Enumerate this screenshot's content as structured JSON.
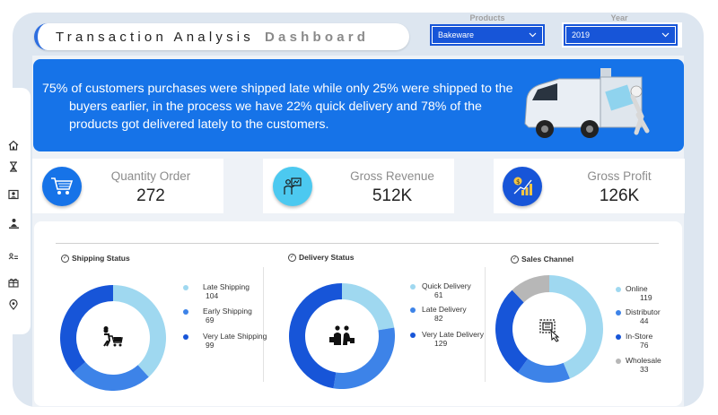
{
  "header": {
    "title_part1": "Transaction Analysis",
    "title_part2": "Dashboard"
  },
  "filters": {
    "products": {
      "label": "Products",
      "selected": "Bakeware"
    },
    "year": {
      "label": "Year",
      "selected": "2019"
    }
  },
  "banner": {
    "line1_a": "75%",
    "line1_b": "of customers purchases were shipped late while only",
    "line1_c": "25%",
    "line1_d": "were shipped to the",
    "line2_a": "buyers earlier, in the process we have",
    "line2_b": "22%",
    "line2_c": "quick delivery and",
    "line2_d": "78%",
    "line2_e": "of the",
    "line3": "products got delivered lately to the customers."
  },
  "kpis": [
    {
      "label": "Quantity Order",
      "value": "272",
      "icon": "shopping-cart-icon"
    },
    {
      "label": "Gross Revenue",
      "value": "512K",
      "icon": "revenue-presentation-icon"
    },
    {
      "label": "Gross Profit",
      "value": "126K",
      "icon": "profit-growth-icon"
    }
  ],
  "colors": {
    "accent": "#1673e8",
    "dark_blue": "#1755d8",
    "mid_blue": "#3d83e8",
    "light_blue": "#9fd8f0",
    "grey": "#b7b7b7"
  },
  "chart_data": [
    {
      "type": "pie",
      "title": "Shipping Status",
      "categories": [
        "Late Shipping",
        "Early Shipping",
        "Very Late Shipping"
      ],
      "values": [
        104,
        69,
        99
      ],
      "colors": [
        "#9fd8f0",
        "#3d83e8",
        "#1755d8"
      ],
      "center_icon": "person-cart-icon",
      "legend": "right"
    },
    {
      "type": "pie",
      "title": "Delivery Status",
      "categories": [
        "Quick Delivery",
        "Late Delivery",
        "Very Late Delivery"
      ],
      "values": [
        61,
        82,
        129
      ],
      "colors": [
        "#9fd8f0",
        "#3d83e8",
        "#1755d8"
      ],
      "center_icon": "shoppers-icon",
      "legend": "right"
    },
    {
      "type": "pie",
      "title": "Sales Channel",
      "categories": [
        "Online",
        "Distributor",
        "In-Store",
        "Wholesale"
      ],
      "values": [
        119,
        44,
        76,
        33
      ],
      "colors": [
        "#9fd8f0",
        "#3d83e8",
        "#1755d8",
        "#b7b7b7"
      ],
      "center_icon": "online-shopping-icon",
      "legend": "right"
    }
  ]
}
